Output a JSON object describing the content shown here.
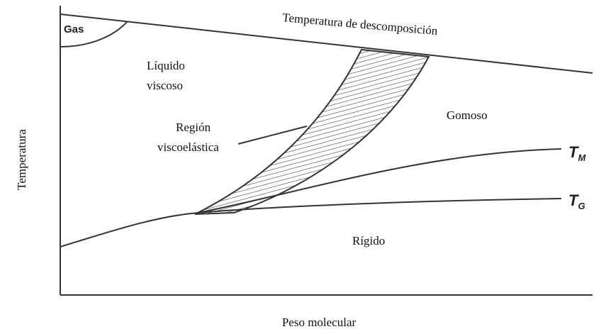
{
  "diagram": {
    "gas": "Gas",
    "decomposition": "Temperatura de descomposición",
    "liquid": [
      "Líquido",
      "viscoso"
    ],
    "viscoelastic": [
      "Región",
      "viscoelástica"
    ],
    "rubbery": "Gomoso",
    "tm": {
      "symbol": "T",
      "subscript": "M"
    },
    "tg": {
      "symbol": "T",
      "subscript": "G"
    },
    "rigid": "Rígido",
    "y_axis": "Temperatura",
    "x_axis": "Peso molecular"
  }
}
